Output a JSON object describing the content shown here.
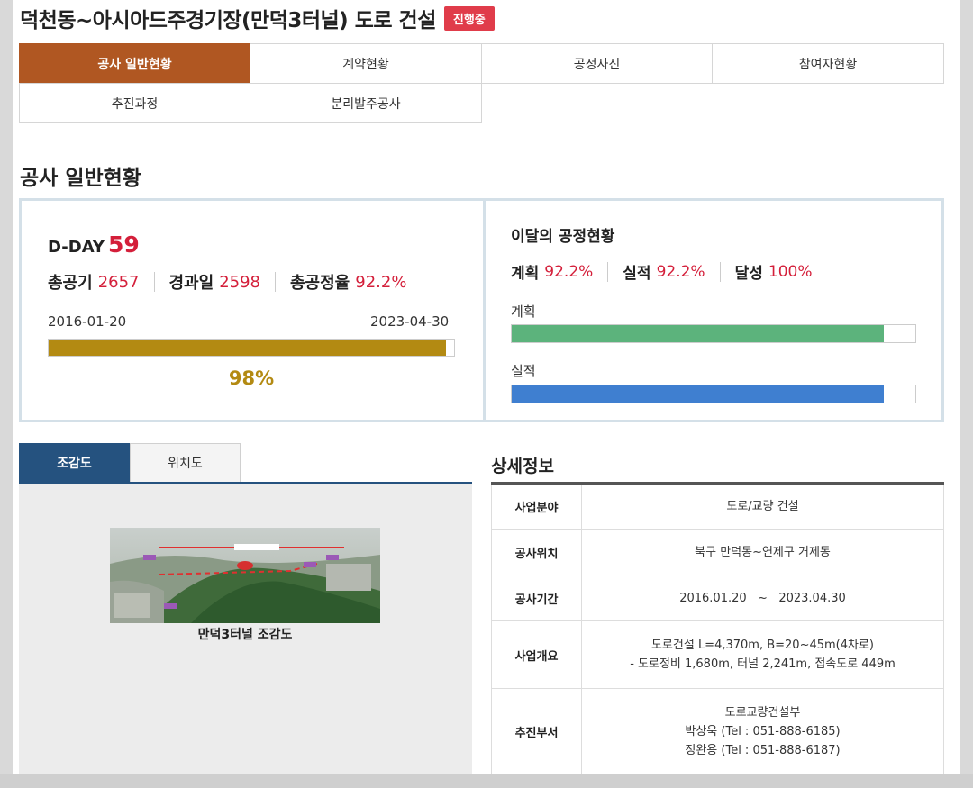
{
  "header": {
    "title": "덕천동~아시아드주경기장(만덕3터널) 도로 건설",
    "status_badge": "진행중"
  },
  "tabs": [
    {
      "label": "공사 일반현황",
      "active": true
    },
    {
      "label": "계약현황",
      "active": false
    },
    {
      "label": "공정사진",
      "active": false
    },
    {
      "label": "참여자현황",
      "active": false
    },
    {
      "label": "추진과정",
      "active": false
    },
    {
      "label": "분리발주공사",
      "active": false
    }
  ],
  "section_title": "공사 일반현황",
  "overview": {
    "dday_label": "D-DAY",
    "dday_value": "59",
    "total_days_label": "총공기",
    "total_days_value": "2657",
    "elapsed_label": "경과일",
    "elapsed_value": "2598",
    "overall_rate_label": "총공정율",
    "overall_rate_value": "92.2%",
    "start_date": "2016-01-20",
    "end_date": "2023-04-30",
    "time_progress_text": "98%",
    "time_progress_fraction": 0.98
  },
  "monthly": {
    "title": "이달의 공정현황",
    "plan_label": "계획",
    "plan_value": "92.2%",
    "actual_label": "실적",
    "actual_value": "92.2%",
    "achieve_label": "달성",
    "achieve_value": "100%",
    "plan_bar_label": "계획",
    "actual_bar_label": "실적",
    "plan_fraction": 0.922,
    "actual_fraction": 0.922
  },
  "map_tabs": {
    "bird_view": "조감도",
    "location": "위치도"
  },
  "aerial_caption": "만덕3터널 조감도",
  "details": {
    "title": "상세정보",
    "rows": [
      {
        "label": "사업분야",
        "lines": [
          "도로/교량 건설"
        ]
      },
      {
        "label": "공사위치",
        "lines": [
          "북구 만덕동~연제구 거제동"
        ]
      },
      {
        "label": "공사기간",
        "lines": [
          "2016.01.20   ~   2023.04.30"
        ]
      },
      {
        "label": "사업개요",
        "lines": [
          "도로건설 L=4,370m, B=20~45m(4차로)",
          "- 도로정비 1,680m, 터널 2,241m, 접속도로 449m"
        ]
      },
      {
        "label": "추진부서",
        "lines": [
          "도로교량건설부",
          "박상욱 (Tel : 051-888-6185)",
          "정완용 (Tel : 051-888-6187)"
        ]
      }
    ]
  },
  "colors": {
    "active_tab": "#b05722",
    "badge": "#e03c4a",
    "highlight_red": "#d41f3a",
    "gold": "#b38a12",
    "plan_green": "#5cb37c",
    "actual_blue": "#3f7fd0",
    "navy": "#25527f"
  }
}
